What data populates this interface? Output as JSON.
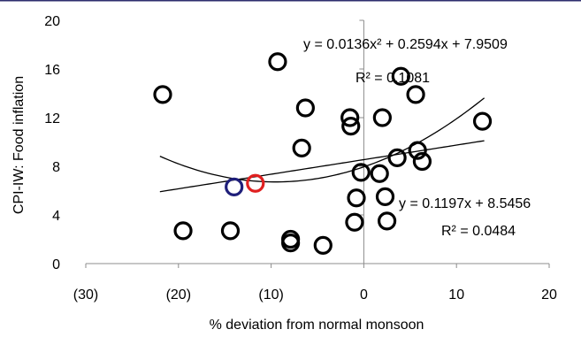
{
  "chart_data": {
    "type": "scatter",
    "title": "",
    "xlabel": "% deviation from normal monsoon",
    "ylabel": "CPI-IW: Food inflation",
    "xlim": [
      -30,
      20
    ],
    "ylim": [
      0,
      20
    ],
    "x_ticks": [
      -30,
      -20,
      -10,
      0,
      10,
      20
    ],
    "x_tick_labels": [
      "(30)",
      "(20)",
      "(10)",
      "0",
      "10",
      "20"
    ],
    "y_ticks": [
      0,
      4,
      8,
      12,
      16,
      20
    ],
    "y_tick_labels": [
      "0",
      "4",
      "8",
      "12",
      "16",
      "20"
    ],
    "grid": false,
    "series": [
      {
        "marker": "open-circle",
        "color": "#000000",
        "points": [
          {
            "x": -21.7,
            "y": 13.9
          },
          {
            "x": -19.5,
            "y": 2.7
          },
          {
            "x": -14.4,
            "y": 2.7
          },
          {
            "x": -9.3,
            "y": 16.6
          },
          {
            "x": -7.9,
            "y": 1.7
          },
          {
            "x": -7.9,
            "y": 2.0
          },
          {
            "x": -6.7,
            "y": 9.5
          },
          {
            "x": -6.3,
            "y": 12.8
          },
          {
            "x": -4.4,
            "y": 1.5
          },
          {
            "x": -1.5,
            "y": 12.0
          },
          {
            "x": -1.4,
            "y": 11.3
          },
          {
            "x": -1.0,
            "y": 3.4
          },
          {
            "x": -0.8,
            "y": 5.4
          },
          {
            "x": -0.3,
            "y": 7.5
          },
          {
            "x": 1.7,
            "y": 7.4
          },
          {
            "x": 2.0,
            "y": 12.0
          },
          {
            "x": 2.3,
            "y": 5.5
          },
          {
            "x": 2.5,
            "y": 3.5
          },
          {
            "x": 3.6,
            "y": 8.7
          },
          {
            "x": 4.0,
            "y": 15.4
          },
          {
            "x": 5.6,
            "y": 13.9
          },
          {
            "x": 5.8,
            "y": 9.3
          },
          {
            "x": 6.3,
            "y": 8.4
          },
          {
            "x": 12.8,
            "y": 11.7
          }
        ]
      },
      {
        "marker": "open-circle",
        "color": "#1f1f7a",
        "points": [
          {
            "x": -14.0,
            "y": 6.3
          }
        ]
      },
      {
        "marker": "open-circle",
        "color": "#e02020",
        "points": [
          {
            "x": -11.7,
            "y": 6.6
          }
        ]
      }
    ],
    "trendlines": [
      {
        "kind": "linear",
        "slope": 0.1197,
        "intercept": 8.5456,
        "x_range": [
          -22,
          13
        ],
        "equation": "y = 0.1197x + 8.5456",
        "r2": "R² = 0.0484"
      },
      {
        "kind": "poly2",
        "a": 0.0136,
        "b": 0.2594,
        "c": 7.9509,
        "x_range": [
          -22,
          13
        ],
        "equation": "y = 0.0136x² + 0.2594x + 7.9509",
        "r2": "R² = 0.1081"
      }
    ]
  },
  "accent": {
    "top_border": "#2e2e6e"
  }
}
